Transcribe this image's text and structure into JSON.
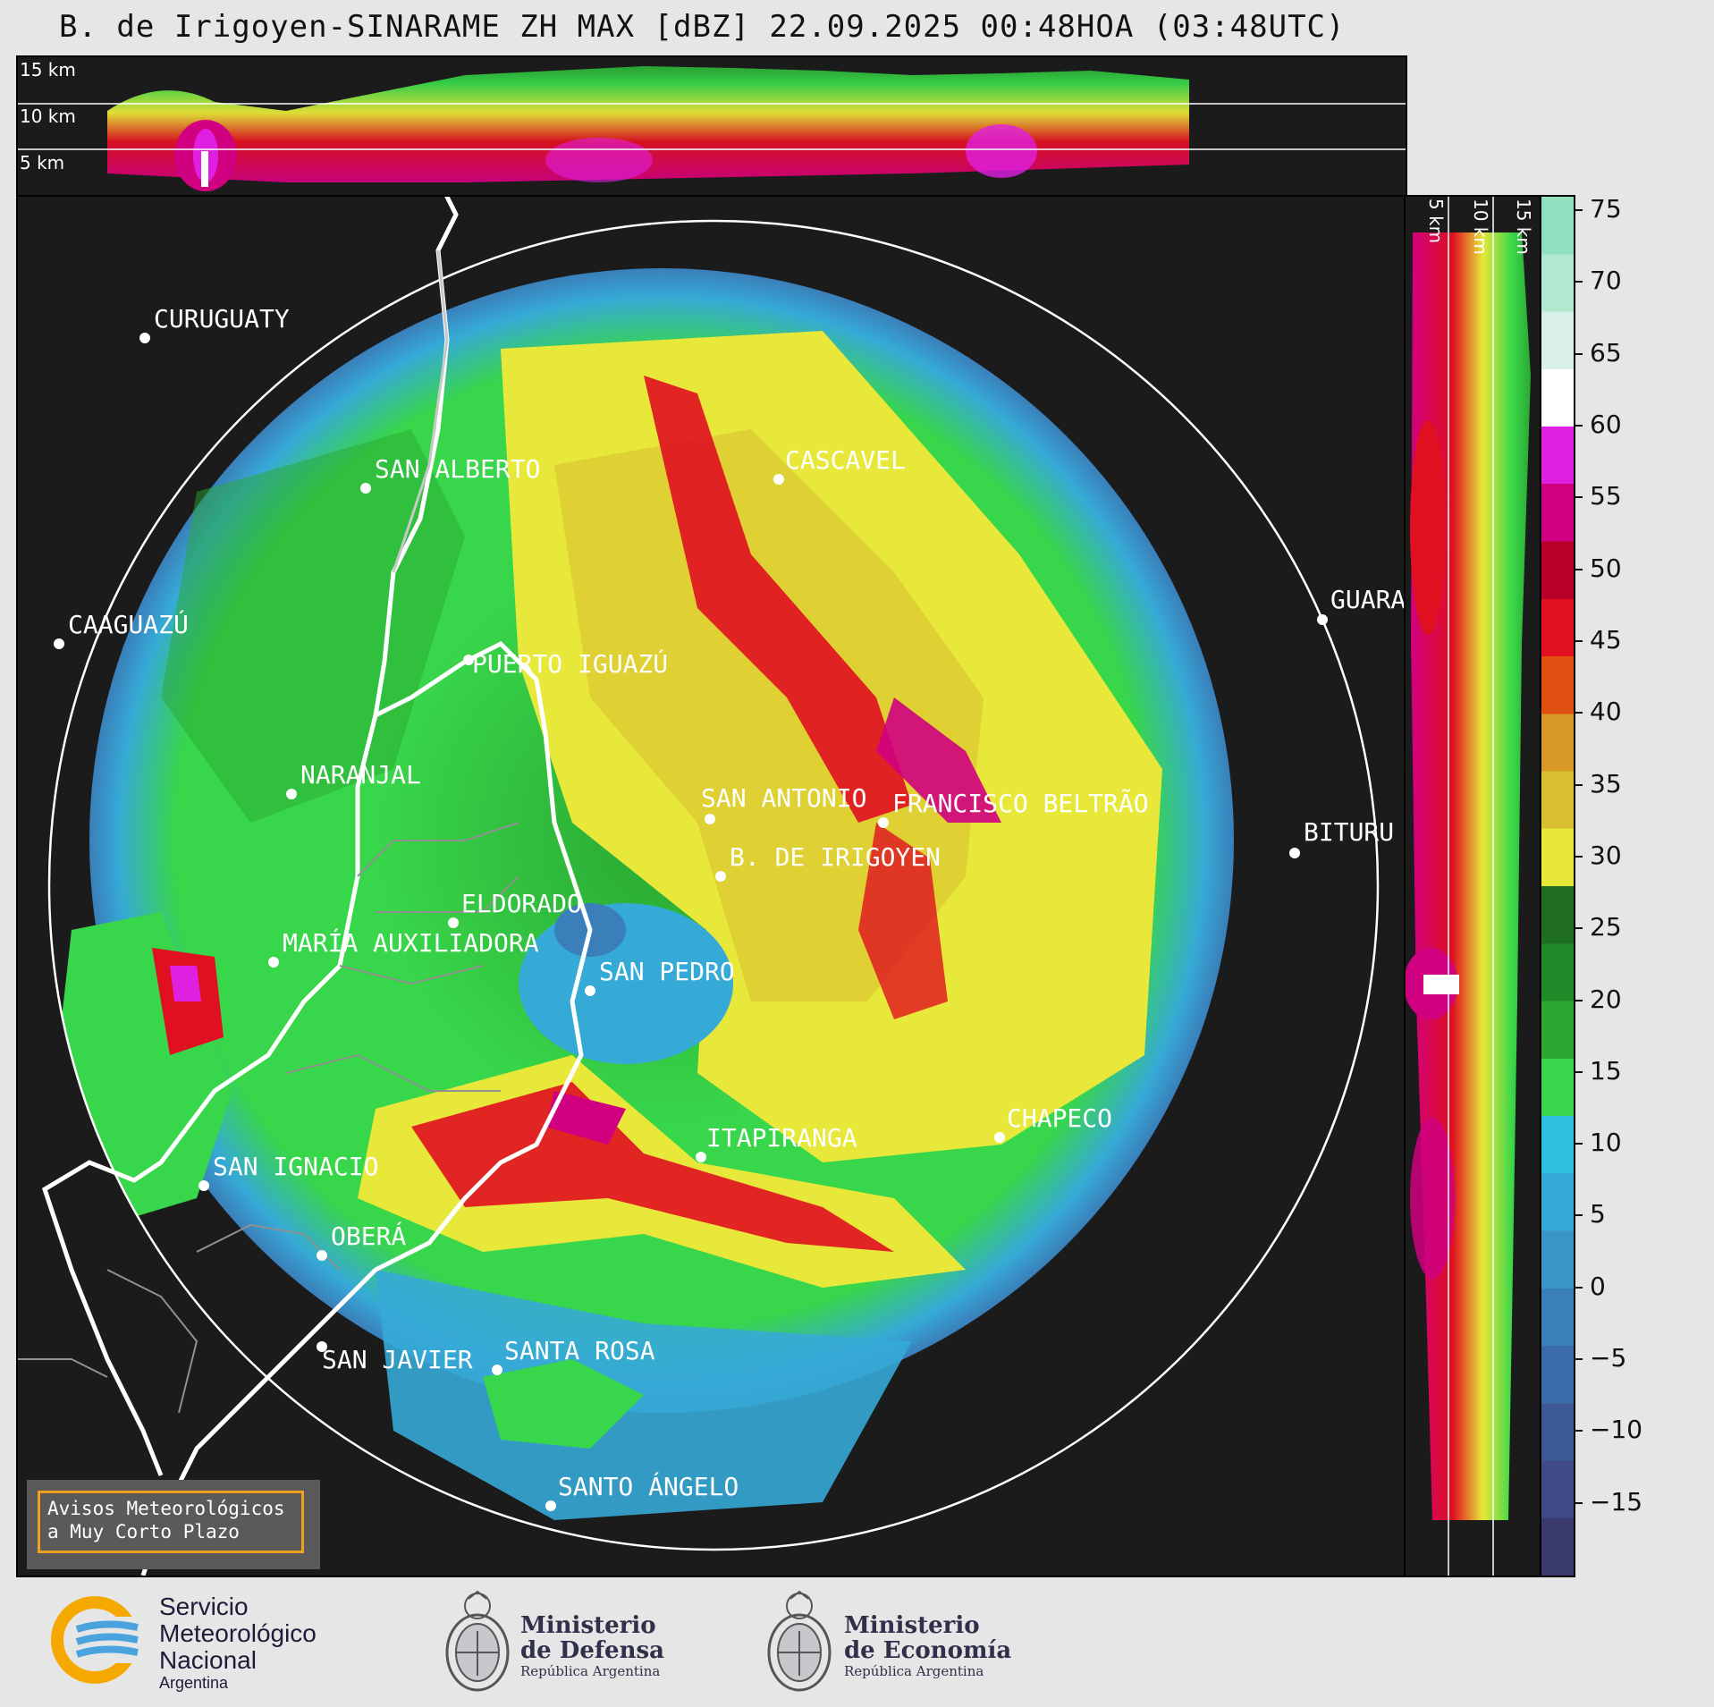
{
  "title": "B. de Irigoyen-SINARAME ZH MAX [dBZ] 22.09.2025 00:48HOA (03:48UTC)",
  "top_panel": {
    "km_labels": [
      "15 km",
      "10 km",
      "5 km"
    ]
  },
  "side_panel": {
    "km_labels": [
      "5 km",
      "10 km",
      "15 km"
    ]
  },
  "colorbar": {
    "ticks": [
      "75",
      "70",
      "65",
      "60",
      "55",
      "50",
      "45",
      "40",
      "35",
      "30",
      "25",
      "20",
      "15",
      "10",
      "5",
      "0",
      "−5",
      "−10",
      "−15"
    ],
    "colors": [
      "#3a3a6e",
      "#3f4a86",
      "#3d5a97",
      "#3a6aa8",
      "#3a7fba",
      "#3a94c8",
      "#36aad6",
      "#2dbfe0",
      "#38d64a",
      "#2aa832",
      "#208a28",
      "#1f6e22",
      "#e8e83a",
      "#d8c030",
      "#d89a26",
      "#e05010",
      "#e01020",
      "#b8002a",
      "#d00080",
      "#e020e0",
      "#ffffff",
      "#d8f0e8",
      "#b0e8d0",
      "#90e0c0"
    ],
    "min": -20,
    "max": 76
  },
  "cities": [
    {
      "name": "CURUGUATY"
    },
    {
      "name": "SAN ALBERTO"
    },
    {
      "name": "CAAGUAZÚ"
    },
    {
      "name": "PUERTO IGUAZÚ"
    },
    {
      "name": "CASCAVEL"
    },
    {
      "name": "GUARA"
    },
    {
      "name": "NARANJAL"
    },
    {
      "name": "SAN ANTONIO"
    },
    {
      "name": "FRANCISCO BELTRÃO"
    },
    {
      "name": "BITURU"
    },
    {
      "name": "B. DE IRIGOYEN"
    },
    {
      "name": "ELDORADO"
    },
    {
      "name": "MARÍA AUXILIADORA"
    },
    {
      "name": "SAN PEDRO"
    },
    {
      "name": "CHAPECO"
    },
    {
      "name": "ITAPIRANGA"
    },
    {
      "name": "SAN IGNACIO"
    },
    {
      "name": "OBERÁ"
    },
    {
      "name": "SAN JAVIER"
    },
    {
      "name": "SANTA ROSA"
    },
    {
      "name": "SANTO ÁNGELO"
    }
  ],
  "notice": {
    "line1": "Avisos Meteorológicos",
    "line2": "a Muy Corto Plazo"
  },
  "footer": {
    "smn_line1": "Servicio",
    "smn_line2": "Meteorológico",
    "smn_line3": "Nacional",
    "smn_line4": "Argentina",
    "defensa_line1": "Ministerio",
    "defensa_line2": "de Defensa",
    "defensa_sub": "República Argentina",
    "economia_line1": "Ministerio",
    "economia_line2": "de Economía",
    "economia_sub": "República Argentina"
  }
}
